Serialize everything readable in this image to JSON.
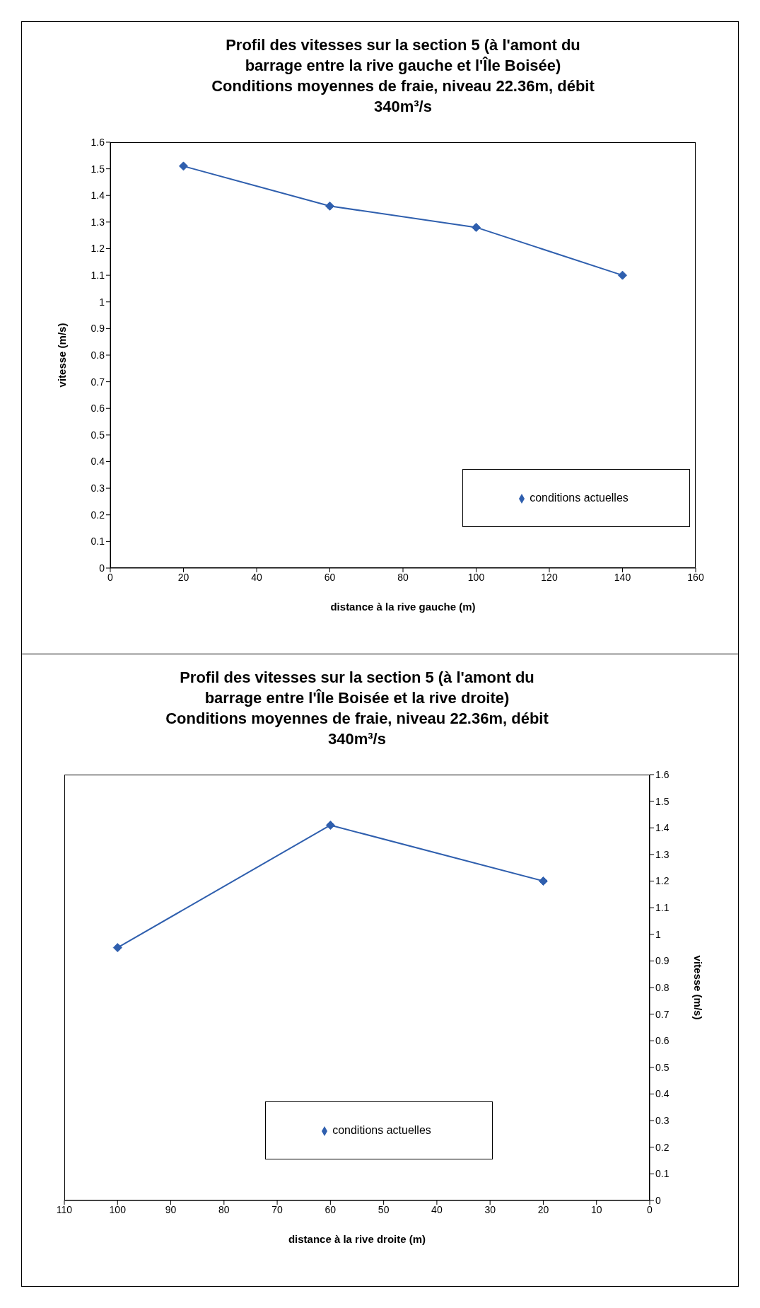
{
  "chart_data": [
    {
      "type": "line",
      "title": "Profil des vitesses sur la section 5 (à l'amont du\nbarrage entre la rive gauche et l'Île Boisée)\nConditions moyennes de fraie, niveau 22.36m, débit\n340m³/s",
      "xlabel": "distance à la rive gauche (m)",
      "ylabel": "vitesse (m/s)",
      "x": [
        20,
        60,
        100,
        140
      ],
      "series": [
        {
          "name": "conditions actuelles",
          "color": "#2f5fae",
          "values": [
            1.51,
            1.36,
            1.28,
            1.1
          ]
        }
      ],
      "xlim": [
        0,
        160
      ],
      "xticks": [
        0,
        20,
        40,
        60,
        80,
        100,
        120,
        140,
        160
      ],
      "ylim": [
        0,
        1.6
      ],
      "yticks": [
        0,
        0.1,
        0.2,
        0.3,
        0.4,
        0.5,
        0.6,
        0.7,
        0.8,
        0.9,
        1,
        1.1,
        1.2,
        1.3,
        1.4,
        1.5,
        1.6
      ],
      "grid": false,
      "legend": "bottom right",
      "marker": "diamond",
      "line_style": "solid"
    },
    {
      "type": "line",
      "title": "Profil des vitesses sur la section 5 (à l'amont du\nbarrage entre l'Île Boisée et la rive droite)\nConditions moyennes de fraie, niveau 22.36m, débit\n340m³/s",
      "xlabel": "distance à la rive droite (m)",
      "ylabel": "vitesse (m/s)",
      "x": [
        20,
        60,
        100
      ],
      "series": [
        {
          "name": "conditions actuelles",
          "color": "#2f5fae",
          "values": [
            1.2,
            1.41,
            0.95
          ]
        }
      ],
      "xlim": [
        110,
        0
      ],
      "xticks": [
        0,
        10,
        20,
        30,
        40,
        50,
        60,
        70,
        80,
        90,
        100,
        110
      ],
      "ylim": [
        0,
        1.6
      ],
      "yticks": [
        0,
        0.1,
        0.2,
        0.3,
        0.4,
        0.5,
        0.6,
        0.7,
        0.8,
        0.9,
        1,
        1.1,
        1.2,
        1.3,
        1.4,
        1.5,
        1.6
      ],
      "grid": false,
      "legend": "bottom",
      "marker": "diamond",
      "line_style": "solid"
    }
  ]
}
